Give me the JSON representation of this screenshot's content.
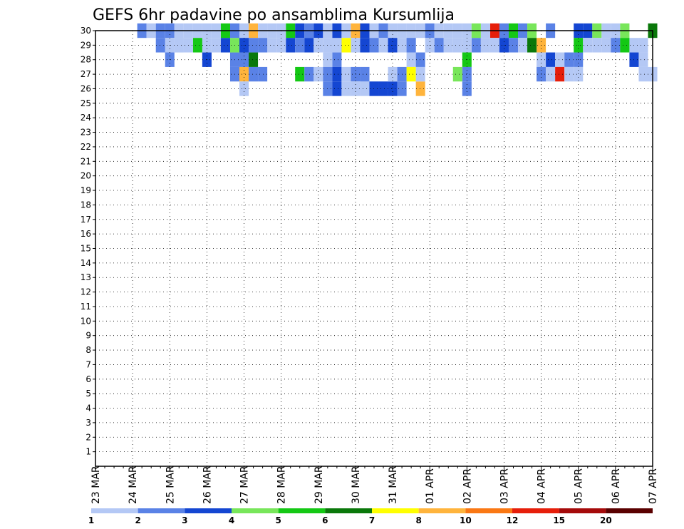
{
  "chart_data": {
    "type": "heatmap",
    "title": "GEFS 6hr padavine po ansamblima Kursumlija",
    "y_ticks": [
      "1",
      "2",
      "3",
      "4",
      "5",
      "6",
      "7",
      "8",
      "9",
      "10",
      "11",
      "12",
      "13",
      "14",
      "15",
      "16",
      "17",
      "18",
      "19",
      "20",
      "21",
      "22",
      "23",
      "24",
      "25",
      "26",
      "27",
      "28",
      "29",
      "30"
    ],
    "ylim": [
      0,
      30
    ],
    "x_ticks": [
      "23 MAR",
      "24 MAR",
      "25 MAR",
      "26 MAR",
      "27 MAR",
      "28 MAR",
      "29 MAR",
      "30 MAR",
      "31 MAR",
      "01 APR",
      "02 APR",
      "03 APR",
      "04 APR",
      "05 APR",
      "06 APR",
      "07 APR"
    ],
    "x_steps_per_day": 4,
    "x_steps_total": 60,
    "grid": true,
    "legend": {
      "placement": "bottom",
      "labels": [
        "1",
        "2",
        "3",
        "4",
        "5",
        "6",
        "7",
        "8",
        "10",
        "12",
        "15",
        "20"
      ],
      "colors": [
        "#b4c8f5",
        "#5a82e6",
        "#1446d2",
        "#78e65a",
        "#14c814",
        "#0a780a",
        "#ffff00",
        "#ffb43c",
        "#fa7814",
        "#e61e0a",
        "#a50a0a",
        "#5a0000"
      ]
    },
    "cells": [
      [
        30,
        5
      ],
      [
        30,
        8
      ],
      [
        29,
        8
      ],
      [
        29,
        9
      ],
      [
        28,
        8
      ],
      [
        29,
        41
      ],
      [
        29,
        40
      ],
      [
        28,
        40
      ],
      [
        27,
        40
      ],
      [
        26,
        40
      ],
      [
        29,
        39
      ],
      [
        27,
        39
      ],
      [
        29,
        26
      ],
      [
        29,
        25
      ],
      [
        28,
        26
      ],
      [
        28,
        25
      ],
      [
        26,
        32
      ],
      [
        27,
        32
      ],
      [
        26,
        33
      ],
      [
        27,
        33
      ],
      [
        29,
        34
      ],
      [
        28,
        34
      ],
      [
        27,
        34
      ],
      [
        26,
        35
      ],
      [
        27,
        35
      ],
      [
        28,
        35
      ],
      [
        29,
        48
      ],
      [
        28,
        48
      ],
      [
        27,
        48
      ],
      [
        30,
        49
      ],
      [
        28,
        49
      ],
      [
        27,
        49
      ],
      [
        28,
        50
      ],
      [
        27,
        50
      ],
      [
        28,
        51
      ],
      [
        27,
        51
      ],
      [
        28,
        52
      ],
      [
        27,
        52
      ],
      [
        29,
        58
      ],
      [
        28,
        58
      ],
      [
        29,
        59
      ],
      [
        28,
        59
      ],
      [
        27,
        59
      ],
      [
        30,
        60
      ],
      [
        27,
        60
      ],
      [
        27,
        22
      ],
      [
        27,
        23
      ],
      [
        27,
        24
      ],
      [
        27,
        25
      ],
      [
        26,
        25
      ],
      [
        26,
        26
      ],
      [
        27,
        26
      ],
      [
        27,
        27
      ],
      [
        26,
        27
      ],
      [
        27,
        28
      ],
      [
        26,
        28
      ],
      [
        26,
        29
      ],
      [
        27,
        29
      ],
      [
        26,
        30
      ],
      [
        26,
        31
      ],
      [
        27,
        16
      ],
      [
        26,
        16
      ],
      [
        27,
        17
      ],
      [
        27,
        15
      ],
      [
        28,
        15
      ],
      [
        29,
        15
      ],
      [
        28,
        16
      ],
      [
        27,
        18
      ],
      [
        30,
        12
      ],
      [
        30,
        13
      ],
      [
        28,
        12
      ],
      [
        29,
        12
      ],
      [
        29,
        13
      ],
      [
        29,
        14
      ],
      [
        30,
        14
      ],
      [
        30,
        17
      ],
      [
        28,
        17
      ],
      [
        30,
        21
      ],
      [
        29,
        21
      ],
      [
        30,
        22
      ],
      [
        29,
        22
      ],
      [
        29,
        19
      ],
      [
        30,
        19
      ],
      [
        30,
        20
      ],
      [
        29,
        20
      ],
      [
        30,
        23
      ],
      [
        29,
        23
      ],
      [
        30,
        24
      ],
      [
        29,
        24
      ],
      [
        30,
        28
      ],
      [
        29,
        28
      ],
      [
        30,
        30
      ],
      [
        29,
        30
      ],
      [
        30,
        31
      ],
      [
        29,
        31
      ],
      [
        30,
        43
      ],
      [
        30,
        44
      ],
      [
        30,
        45
      ],
      [
        29,
        45
      ],
      [
        30,
        46
      ],
      [
        29,
        46
      ],
      [
        30,
        47
      ],
      [
        29,
        47
      ],
      [
        30,
        42
      ],
      [
        29,
        42
      ],
      [
        29,
        43
      ],
      [
        29,
        44
      ],
      [
        30,
        52
      ],
      [
        30,
        53
      ],
      [
        29,
        52
      ],
      [
        29,
        53
      ],
      [
        30,
        54
      ],
      [
        29,
        54
      ],
      [
        30,
        55
      ],
      [
        29,
        55
      ],
      [
        30,
        56
      ],
      [
        29,
        56
      ],
      [
        30,
        57
      ],
      [
        29,
        57
      ],
      [
        30,
        35
      ],
      [
        30,
        36
      ],
      [
        29,
        36
      ],
      [
        30,
        37
      ],
      [
        29,
        37
      ],
      [
        30,
        38
      ],
      [
        29,
        38
      ],
      [
        30,
        39
      ],
      [
        30,
        40
      ],
      [
        30,
        41
      ],
      [
        30,
        32
      ],
      [
        30,
        33
      ],
      [
        30,
        34
      ],
      [
        29,
        32
      ],
      [
        29,
        33
      ],
      [
        29,
        34
      ],
      [
        30,
        18
      ],
      [
        29,
        18
      ],
      [
        30,
        15
      ],
      [
        30,
        16
      ],
      [
        29,
        16
      ],
      [
        29,
        17
      ],
      [
        30,
        26
      ],
      [
        30,
        27
      ],
      [
        29,
        27
      ],
      [
        30,
        29
      ],
      [
        29,
        29
      ],
      [
        30,
        25
      ],
      [
        29,
        26
      ],
      [
        30,
        11
      ],
      [
        29,
        11
      ],
      [
        30,
        10
      ],
      [
        29,
        10
      ],
      [
        30,
        9
      ],
      [
        29,
        9
      ],
      [
        30,
        6
      ],
      [
        30,
        7
      ],
      [
        29,
        7
      ]
    ]
  }
}
